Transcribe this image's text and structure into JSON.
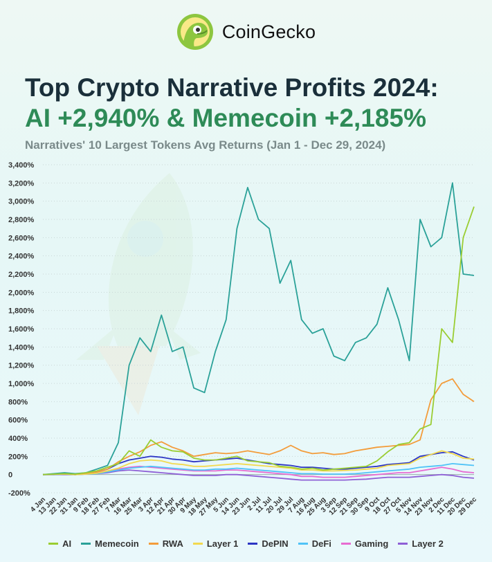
{
  "brand": {
    "name": "CoinGecko"
  },
  "title_line1": "Top Crypto Narrative Profits 2024:",
  "title_line2": "AI +2,940% & Memecoin +2,185%",
  "subtitle": "Narratives' 10 Largest Tokens Avg Returns (Jan 1 - Dec 29, 2024)",
  "colors": {
    "ai": "#9acd32",
    "memecoin": "#2aa198",
    "rwa": "#f39c3a",
    "layer1": "#f2d94e",
    "depin": "#2c35c4",
    "defi": "#4fc3f7",
    "gaming": "#e76bd1",
    "layer2": "#8e5fd6",
    "grid": "#c9d6d6"
  },
  "chart_data": {
    "type": "line",
    "title": "Narratives' 10 Largest Tokens Avg Returns (Jan 1 - Dec 29, 2024)",
    "x_labels": [
      "4 Jan",
      "13 Jan",
      "22 Jan",
      "31 Jan",
      "9 Feb",
      "18 Feb",
      "27 Feb",
      "7 Mar",
      "16 Mar",
      "25 Mar",
      "3 Apr",
      "12 Apr",
      "21 Apr",
      "30 Apr",
      "9 May",
      "18 May",
      "27 May",
      "5 Jun",
      "14 Jun",
      "23 Jun",
      "2 Jul",
      "11 Jul",
      "20 Jul",
      "29 Jul",
      "7 Aug",
      "16 Aug",
      "25 Aug",
      "3 Sep",
      "12 Sep",
      "21 Sep",
      "30 Sep",
      "9 Oct",
      "18 Oct",
      "27 Oct",
      "5 Nov",
      "14 Nov",
      "23 Nov",
      "2 Dec",
      "11 Dec",
      "20 Dec",
      "29 Dec"
    ],
    "y_ticks": [
      -200,
      0,
      200,
      400,
      600,
      800,
      1000,
      1200,
      1400,
      1600,
      1800,
      2000,
      2200,
      2400,
      2600,
      2800,
      3000,
      3200,
      3400
    ],
    "y_tick_labels": [
      "-200%",
      "0",
      "200%",
      "400%",
      "600%",
      "800%",
      "1,000%",
      "1,200%",
      "1,400%",
      "1,600%",
      "1,800%",
      "2,000%",
      "2,200%",
      "2,400%",
      "2,600%",
      "2,800%",
      "3,000%",
      "3,200%",
      "3,400%"
    ],
    "ylim": [
      -200,
      3400
    ],
    "legend_position": "bottom",
    "series": [
      {
        "name": "AI",
        "color": "#9acd32",
        "values": [
          0,
          5,
          10,
          5,
          20,
          40,
          80,
          120,
          260,
          200,
          380,
          300,
          260,
          250,
          180,
          160,
          160,
          180,
          200,
          150,
          140,
          130,
          90,
          80,
          60,
          70,
          50,
          60,
          70,
          80,
          90,
          150,
          250,
          330,
          350,
          500,
          550,
          1600,
          1450,
          2600,
          2940
        ]
      },
      {
        "name": "Memecoin",
        "color": "#2aa198",
        "values": [
          0,
          10,
          20,
          10,
          20,
          60,
          100,
          350,
          1200,
          1500,
          1350,
          1750,
          1350,
          1400,
          950,
          900,
          1350,
          1700,
          2700,
          3150,
          2800,
          2700,
          2100,
          2350,
          1700,
          1550,
          1600,
          1300,
          1250,
          1450,
          1500,
          1650,
          2050,
          1700,
          1250,
          2800,
          2500,
          2600,
          3200,
          2200,
          2185
        ]
      },
      {
        "name": "RWA",
        "color": "#f39c3a",
        "values": [
          0,
          5,
          10,
          5,
          15,
          30,
          60,
          140,
          200,
          250,
          320,
          360,
          300,
          260,
          200,
          220,
          240,
          230,
          240,
          260,
          240,
          220,
          260,
          320,
          260,
          230,
          240,
          220,
          230,
          260,
          280,
          300,
          310,
          320,
          330,
          380,
          820,
          1000,
          1050,
          880,
          800
        ]
      },
      {
        "name": "Layer 1",
        "color": "#f2d94e",
        "values": [
          0,
          2,
          5,
          0,
          5,
          15,
          40,
          70,
          120,
          150,
          160,
          150,
          120,
          110,
          90,
          90,
          100,
          110,
          120,
          110,
          100,
          90,
          80,
          70,
          50,
          50,
          40,
          40,
          45,
          50,
          60,
          70,
          100,
          110,
          120,
          180,
          220,
          260,
          230,
          180,
          170
        ]
      },
      {
        "name": "DePIN",
        "color": "#2c35c4",
        "values": [
          0,
          2,
          5,
          0,
          10,
          30,
          60,
          120,
          160,
          180,
          200,
          190,
          170,
          160,
          140,
          150,
          160,
          170,
          180,
          160,
          140,
          120,
          110,
          100,
          80,
          80,
          70,
          60,
          60,
          70,
          80,
          90,
          110,
          120,
          130,
          200,
          220,
          240,
          250,
          200,
          160
        ]
      },
      {
        "name": "DeFi",
        "color": "#4fc3f7",
        "values": [
          0,
          0,
          5,
          0,
          5,
          10,
          30,
          50,
          70,
          80,
          90,
          80,
          70,
          60,
          50,
          50,
          60,
          60,
          70,
          60,
          50,
          40,
          30,
          20,
          10,
          10,
          5,
          5,
          5,
          10,
          20,
          30,
          40,
          50,
          60,
          80,
          90,
          100,
          120,
          110,
          100
        ]
      },
      {
        "name": "Gaming",
        "color": "#e76bd1",
        "values": [
          0,
          0,
          5,
          0,
          5,
          20,
          40,
          60,
          80,
          90,
          80,
          70,
          60,
          50,
          40,
          40,
          40,
          50,
          50,
          40,
          30,
          20,
          10,
          0,
          -20,
          -20,
          -30,
          -30,
          -30,
          -20,
          -10,
          0,
          10,
          20,
          20,
          40,
          60,
          80,
          60,
          30,
          20
        ]
      },
      {
        "name": "Layer 2",
        "color": "#8e5fd6",
        "values": [
          0,
          0,
          0,
          0,
          5,
          10,
          20,
          40,
          50,
          40,
          30,
          20,
          10,
          0,
          -10,
          -10,
          -10,
          0,
          0,
          -10,
          -20,
          -30,
          -40,
          -50,
          -60,
          -60,
          -60,
          -60,
          -60,
          -55,
          -50,
          -40,
          -30,
          -30,
          -30,
          -20,
          -10,
          0,
          -10,
          -30,
          -40
        ]
      }
    ]
  }
}
